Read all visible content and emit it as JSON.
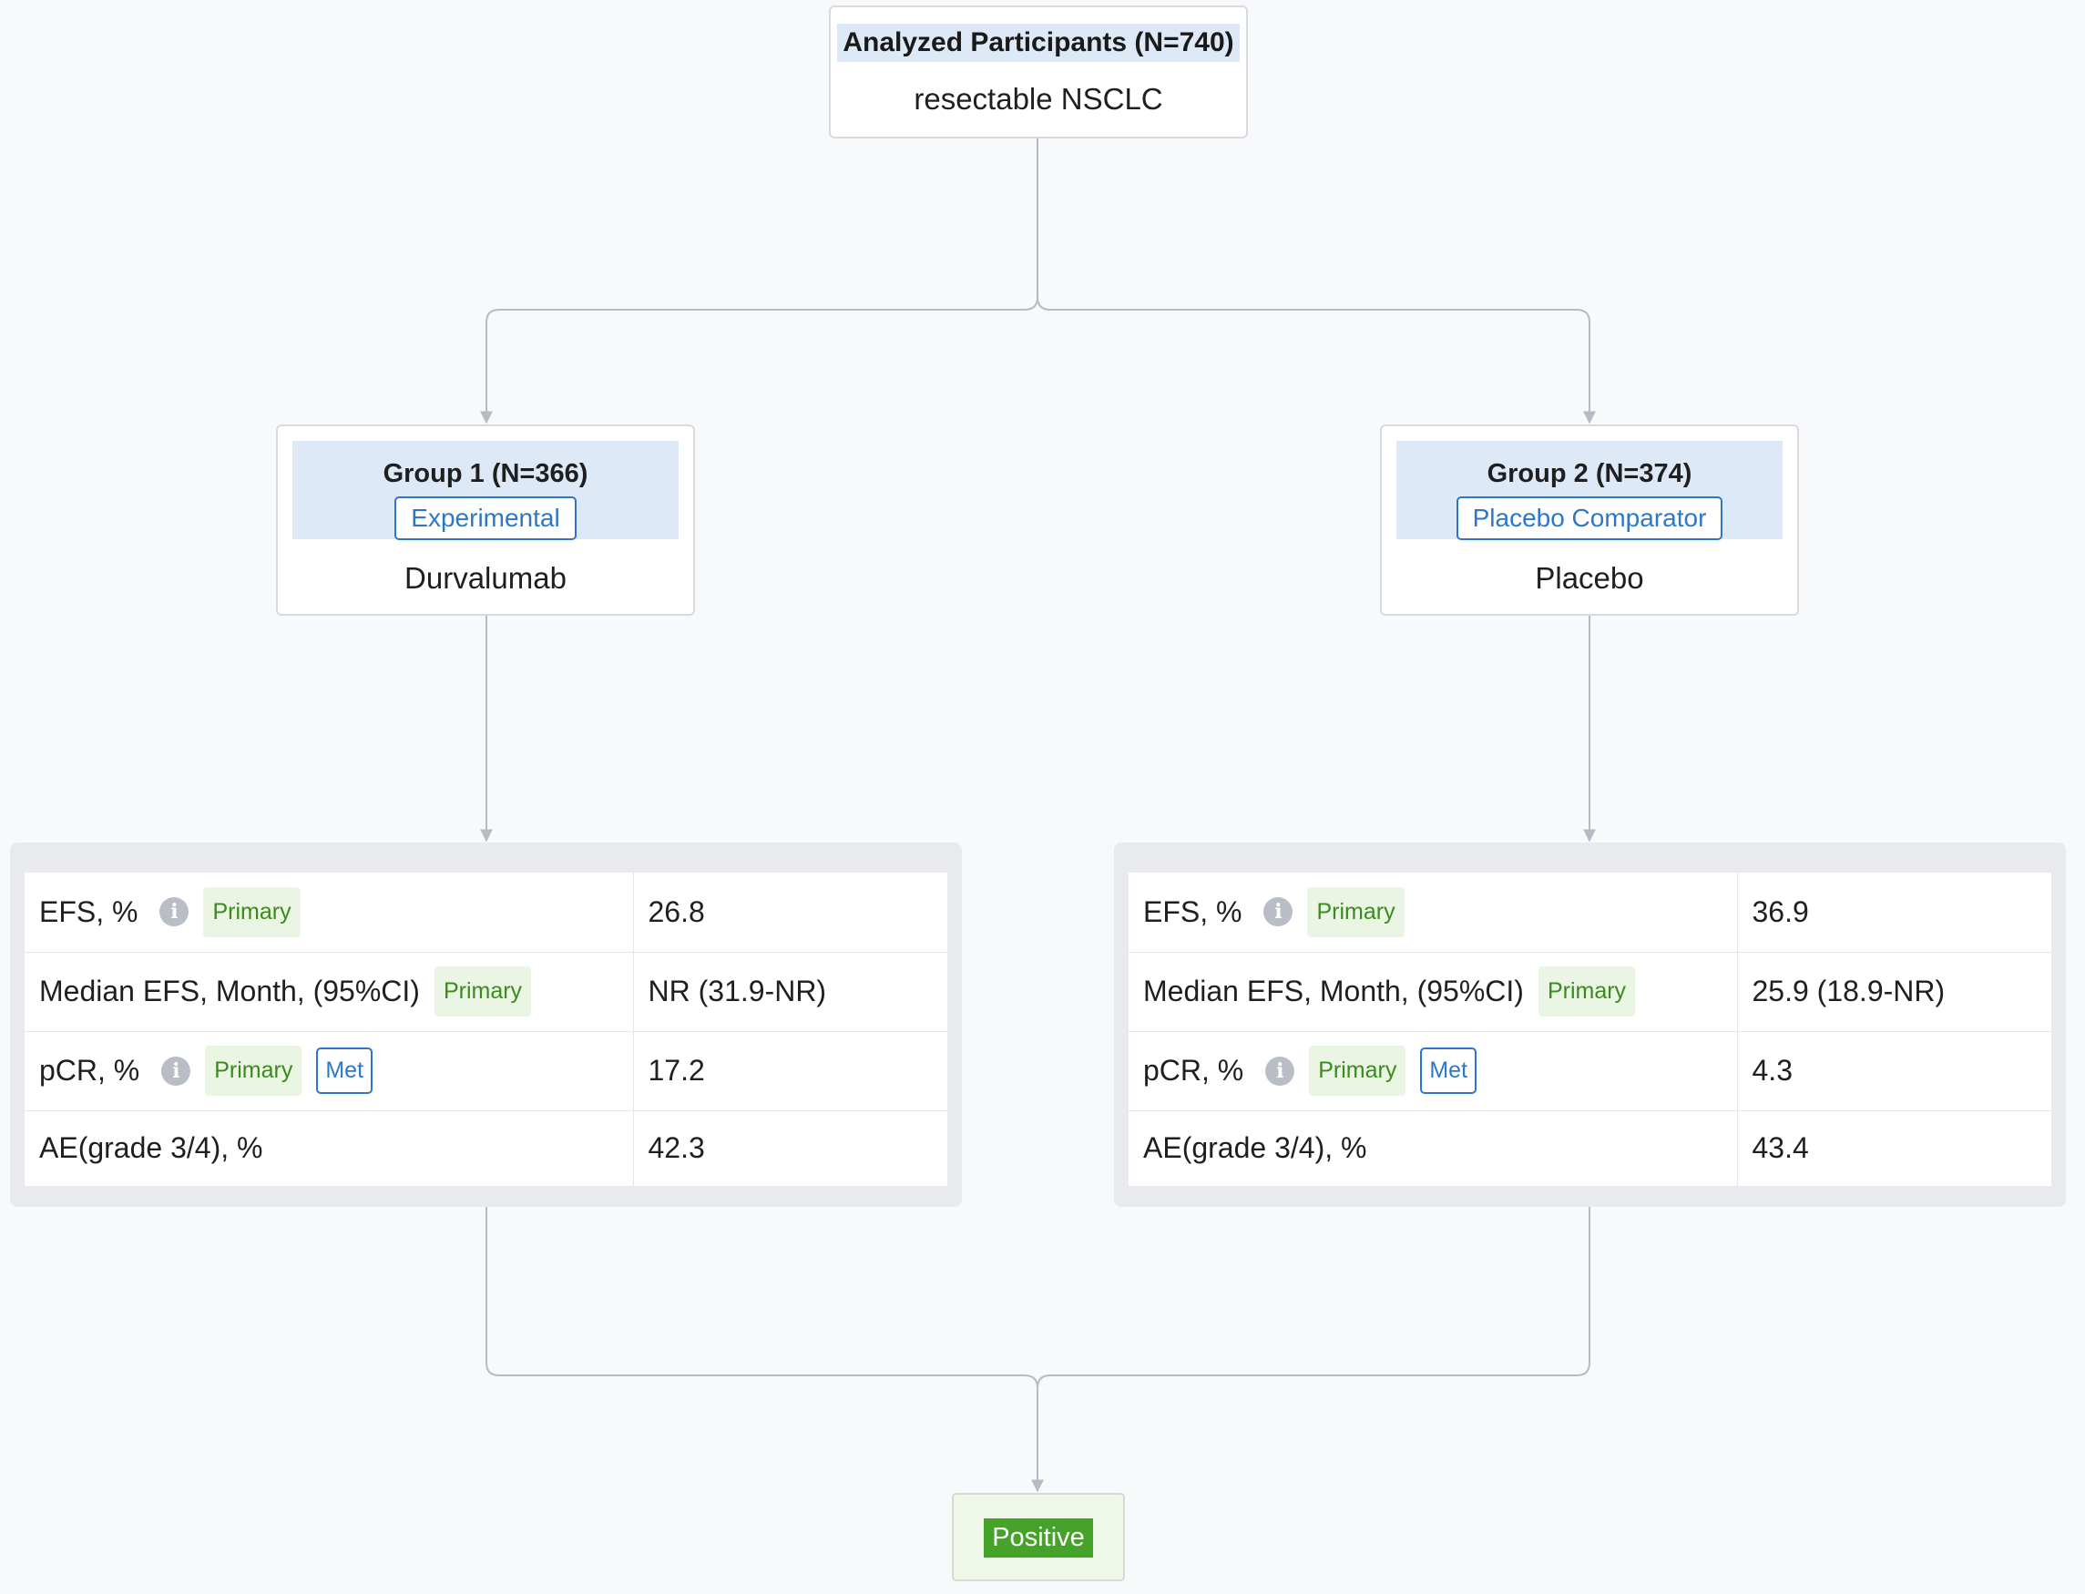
{
  "root": {
    "title": "Analyzed Participants (N=740)",
    "subtitle": "resectable NSCLC"
  },
  "groups": [
    {
      "title": "Group 1 (N=366)",
      "arm_type": "Experimental",
      "intervention": "Durvalumab",
      "outcomes": [
        {
          "metric": "EFS, %",
          "info": true,
          "primary": "Primary",
          "met": "",
          "value": "26.8"
        },
        {
          "metric": "Median EFS, Month, (95%CI)",
          "info": false,
          "primary": "Primary",
          "met": "",
          "value": "NR (31.9-NR)"
        },
        {
          "metric": "pCR, %",
          "info": true,
          "primary": "Primary",
          "met": "Met",
          "value": "17.2"
        },
        {
          "metric": "AE(grade 3/4), %",
          "info": false,
          "primary": "",
          "met": "",
          "value": "42.3"
        }
      ]
    },
    {
      "title": "Group 2 (N=374)",
      "arm_type": "Placebo Comparator",
      "intervention": "Placebo",
      "outcomes": [
        {
          "metric": "EFS, %",
          "info": true,
          "primary": "Primary",
          "met": "",
          "value": "36.9"
        },
        {
          "metric": "Median EFS, Month, (95%CI)",
          "info": false,
          "primary": "Primary",
          "met": "",
          "value": "25.9 (18.9-NR)"
        },
        {
          "metric": "pCR, %",
          "info": true,
          "primary": "Primary",
          "met": "Met",
          "value": "4.3"
        },
        {
          "metric": "AE(grade 3/4), %",
          "info": false,
          "primary": "",
          "met": "",
          "value": "43.4"
        }
      ]
    }
  ],
  "result": {
    "label": "Positive"
  },
  "icons": {
    "info": "info-icon"
  },
  "colors": {
    "accent_blue": "#2e77c8",
    "header_fill": "#dde9f6",
    "primary_badge": "#3a8a1e",
    "positive": "#46a329",
    "connector": "#b7bcc4"
  }
}
